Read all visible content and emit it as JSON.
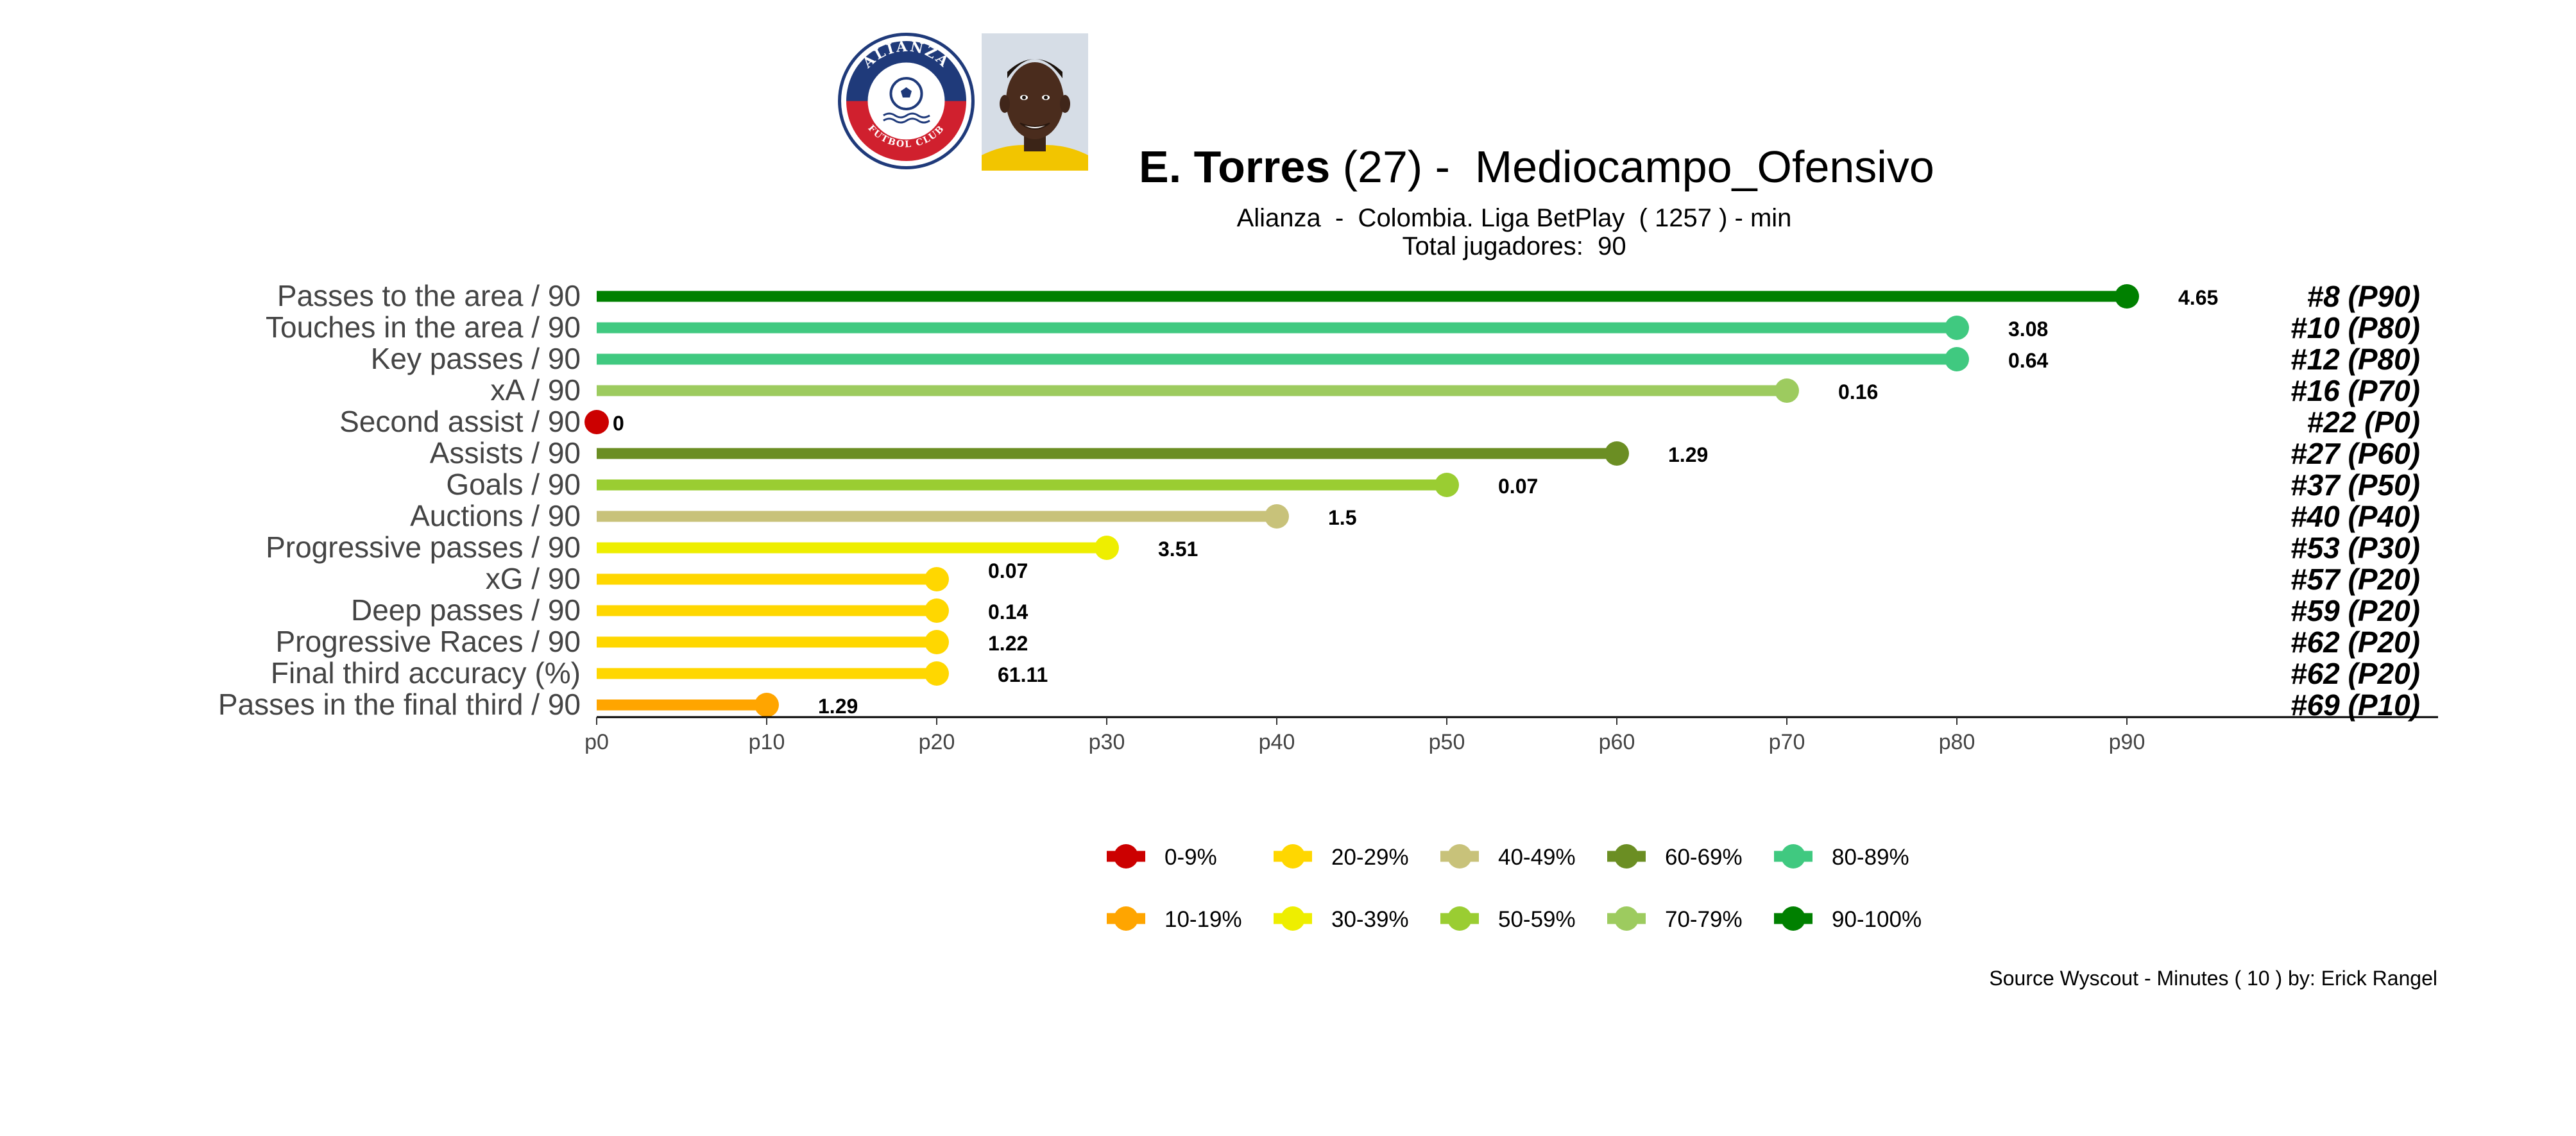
{
  "header": {
    "player_name": "E. Torres",
    "age": "(27)",
    "separator": " -  ",
    "position": "Mediocampo_Ofensivo",
    "subtitle": "Alianza  -  Colombia. Liga BetPlay  ( 1257 ) - min",
    "subtitle2": "Total jugadores:  90",
    "club_logo_top_text": "ALIANZA",
    "club_logo_bottom_text": "FUTBOL CLUB"
  },
  "footer": {
    "source": "Source Wyscout - Minutes ( 10 ) by: Erick Rangel"
  },
  "colors": {
    "0-9%": "#cc0000",
    "10-19%": "#ffa500",
    "20-29%": "#ffd700",
    "30-39%": "#eeee00",
    "40-49%": "#c8c27a",
    "50-59%": "#9acd32",
    "60-69%": "#6b8e23",
    "70-79%": "#9dcb5f",
    "80-89%": "#40c980",
    "90-100%": "#008000"
  },
  "chart_data": {
    "type": "bar",
    "orientation": "horizontal-lollipop",
    "xlim": [
      0,
      90
    ],
    "x_ticks": [
      "p0",
      "p10",
      "p20",
      "p30",
      "p40",
      "p50",
      "p60",
      "p70",
      "p80",
      "p90"
    ],
    "x_tick_values": [
      0,
      10,
      20,
      30,
      40,
      50,
      60,
      70,
      80,
      90
    ],
    "categories": [
      "Passes to the area / 90",
      "Touches in the area / 90",
      "Key passes / 90",
      "xA / 90",
      "Second assist / 90",
      "Assists / 90",
      "Goals / 90",
      "Auctions / 90",
      "Progressive passes / 90",
      "xG / 90",
      "Deep passes / 90",
      "Progressive Races / 90",
      "Final third accuracy (%)",
      "Passes in the final third / 90"
    ],
    "percentiles": [
      90,
      80,
      80,
      70,
      0,
      60,
      50,
      40,
      30,
      20,
      20,
      20,
      20,
      10
    ],
    "value_labels": [
      "4.65",
      "3.08",
      "0.64",
      "0.16",
      "0",
      "1.29",
      "0.07",
      "1.5",
      "3.51",
      "0.07",
      "0.14",
      "1.22",
      "61.11",
      "1.29"
    ],
    "rank_labels": [
      "#8 (P90)",
      "#10 (P80)",
      "#12 (P80)",
      "#16 (P70)",
      "#22 (P0)",
      "#27 (P60)",
      "#37 (P50)",
      "#40 (P40)",
      "#53 (P30)",
      "#57 (P20)",
      "#59 (P20)",
      "#62 (P20)",
      "#62 (P20)",
      "#69 (P10)"
    ],
    "bands": [
      "90-100%",
      "80-89%",
      "80-89%",
      "70-79%",
      "0-9%",
      "60-69%",
      "50-59%",
      "40-49%",
      "30-39%",
      "20-29%",
      "20-29%",
      "20-29%",
      "20-29%",
      "10-19%"
    ],
    "legend": {
      "position": "bottom-center",
      "row1": [
        "0-9%",
        "20-29%",
        "40-49%",
        "60-69%",
        "80-89%"
      ],
      "row2": [
        "10-19%",
        "30-39%",
        "50-59%",
        "70-79%",
        "90-100%"
      ]
    },
    "grid": false
  }
}
